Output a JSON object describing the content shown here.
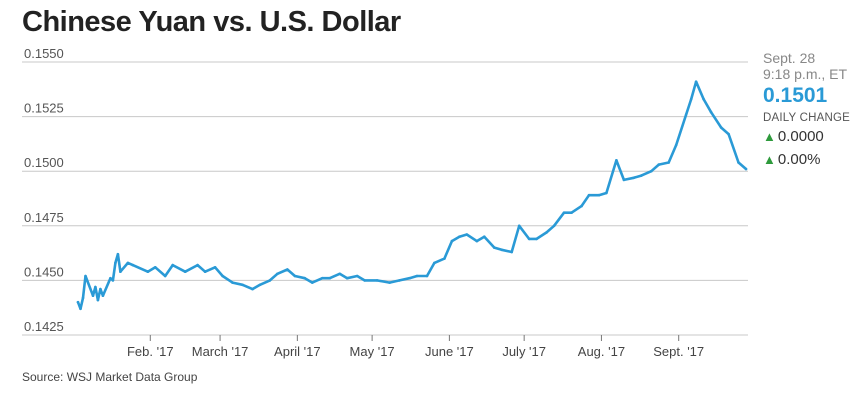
{
  "title": "Chinese Yuan vs. U.S. Dollar",
  "source": "Source: WSJ Market Data Group",
  "sidebar": {
    "date": "Sept. 28",
    "time": "9:18 p.m., ET",
    "value": "0.1501",
    "label": "DAILY CHANGE",
    "change_abs": "0.0000",
    "change_pct": "0.00%",
    "arrow_color": "#2e9a3c",
    "arrow_icon": "up-triangle-icon"
  },
  "colors": {
    "line": "#2a9ad6",
    "grid": "#c8c8c8"
  },
  "chart_data": {
    "type": "line",
    "title": "Chinese Yuan vs. U.S. Dollar",
    "xlabel": "",
    "ylabel": "",
    "ylim": [
      0.1425,
      0.155
    ],
    "yticks": [
      "0.1550",
      "0.1525",
      "0.1500",
      "0.1475",
      "0.1450",
      "0.1425"
    ],
    "grid": true,
    "xticks": [
      {
        "label": "Feb. '17",
        "x": "2017-02-01"
      },
      {
        "label": "March '17",
        "x": "2017-03-01"
      },
      {
        "label": "April '17",
        "x": "2017-04-01"
      },
      {
        "label": "May '17",
        "x": "2017-05-01"
      },
      {
        "label": "June '17",
        "x": "2017-06-01"
      },
      {
        "label": "July '17",
        "x": "2017-07-01"
      },
      {
        "label": "Aug. '17",
        "x": "2017-08-01"
      },
      {
        "label": "Sept. '17",
        "x": "2017-09-01"
      }
    ],
    "x": [
      "2017-01-03",
      "2017-01-04",
      "2017-01-05",
      "2017-01-06",
      "2017-01-09",
      "2017-01-10",
      "2017-01-11",
      "2017-01-12",
      "2017-01-13",
      "2017-01-16",
      "2017-01-17",
      "2017-01-18",
      "2017-01-19",
      "2017-01-20",
      "2017-01-23",
      "2017-01-25",
      "2017-01-31",
      "2017-02-03",
      "2017-02-07",
      "2017-02-10",
      "2017-02-15",
      "2017-02-20",
      "2017-02-23",
      "2017-02-27",
      "2017-03-02",
      "2017-03-06",
      "2017-03-10",
      "2017-03-14",
      "2017-03-17",
      "2017-03-21",
      "2017-03-24",
      "2017-03-28",
      "2017-03-31",
      "2017-04-04",
      "2017-04-07",
      "2017-04-11",
      "2017-04-14",
      "2017-04-18",
      "2017-04-21",
      "2017-04-25",
      "2017-04-28",
      "2017-05-03",
      "2017-05-08",
      "2017-05-12",
      "2017-05-16",
      "2017-05-19",
      "2017-05-23",
      "2017-05-26",
      "2017-05-30",
      "2017-06-02",
      "2017-06-05",
      "2017-06-08",
      "2017-06-12",
      "2017-06-15",
      "2017-06-19",
      "2017-06-22",
      "2017-06-26",
      "2017-06-29",
      "2017-07-03",
      "2017-07-06",
      "2017-07-10",
      "2017-07-13",
      "2017-07-17",
      "2017-07-20",
      "2017-07-24",
      "2017-07-27",
      "2017-07-31",
      "2017-08-03",
      "2017-08-07",
      "2017-08-10",
      "2017-08-14",
      "2017-08-17",
      "2017-08-21",
      "2017-08-24",
      "2017-08-28",
      "2017-08-31",
      "2017-09-04",
      "2017-09-06",
      "2017-09-08",
      "2017-09-11",
      "2017-09-14",
      "2017-09-18",
      "2017-09-21",
      "2017-09-25",
      "2017-09-28"
    ],
    "series": [
      {
        "values": [
          0.144,
          0.1437,
          0.1442,
          0.1452,
          0.1443,
          0.1447,
          0.1441,
          0.1446,
          0.1443,
          0.1451,
          0.145,
          0.1458,
          0.1462,
          0.1454,
          0.1458,
          0.1457,
          0.1454,
          0.1456,
          0.1452,
          0.1457,
          0.1454,
          0.1457,
          0.1454,
          0.1456,
          0.1452,
          0.1449,
          0.1448,
          0.1446,
          0.1448,
          0.145,
          0.1453,
          0.1455,
          0.1452,
          0.1451,
          0.1449,
          0.1451,
          0.1451,
          0.1453,
          0.1451,
          0.1452,
          0.145,
          0.145,
          0.1449,
          0.145,
          0.1451,
          0.1452,
          0.1452,
          0.1458,
          0.146,
          0.1468,
          0.147,
          0.1471,
          0.1468,
          0.147,
          0.1465,
          0.1464,
          0.1463,
          0.1475,
          0.1469,
          0.1469,
          0.1472,
          0.1475,
          0.1481,
          0.1481,
          0.1484,
          0.1489,
          0.1489,
          0.149,
          0.1505,
          0.1496,
          0.1497,
          0.1498,
          0.15,
          0.1503,
          0.1504,
          0.1512,
          0.1526,
          0.1533,
          0.1541,
          0.1533,
          0.1527,
          0.152,
          0.1517,
          0.1504,
          0.1501
        ]
      }
    ]
  }
}
